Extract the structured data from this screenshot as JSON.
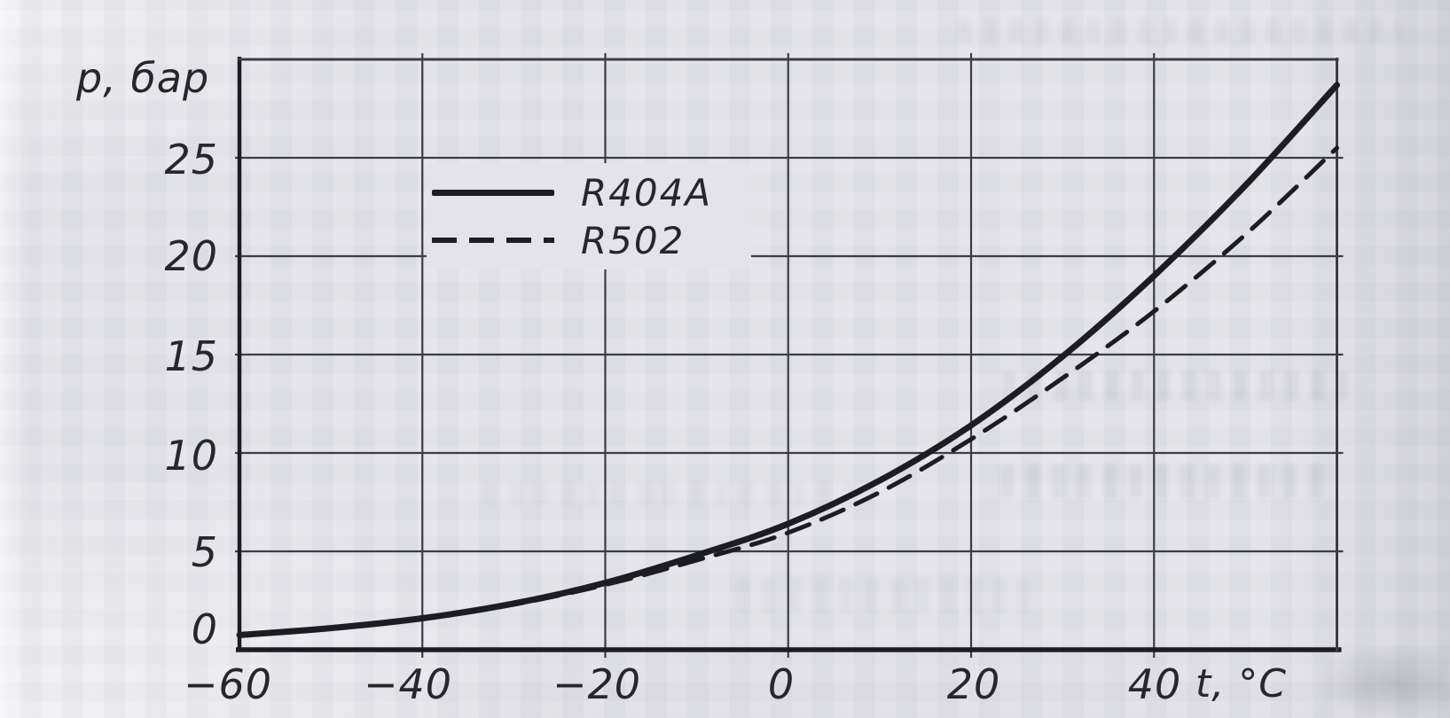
{
  "labels": {
    "y_axis": "p, бар",
    "x_axis": "t, °C"
  },
  "chart_data": {
    "type": "line",
    "title": "",
    "xlabel": "t, °C",
    "ylabel": "p, бар",
    "xlim": [
      -60,
      60
    ],
    "ylim": [
      0,
      30
    ],
    "grid": true,
    "legend_position": "inside upper-left",
    "x": [
      -60,
      -50,
      -40,
      -30,
      -20,
      -10,
      0,
      10,
      20,
      30,
      40,
      50,
      60
    ],
    "series": [
      {
        "name": "R404A",
        "line_style": "solid",
        "values": [
          0.75,
          1.1,
          1.6,
          2.35,
          3.4,
          4.8,
          6.4,
          8.6,
          11.4,
          14.9,
          19.0,
          23.6,
          28.7
        ]
      },
      {
        "name": "R502",
        "line_style": "dashed",
        "values": [
          0.75,
          1.1,
          1.58,
          2.3,
          3.3,
          4.55,
          5.95,
          8.0,
          10.7,
          13.8,
          17.2,
          21.1,
          25.5
        ]
      }
    ],
    "x_tick_values": [
      -60,
      -40,
      -20,
      0,
      20,
      40
    ],
    "x_tick_labels": [
      "−60",
      "−40",
      "−20",
      "0",
      "20",
      "40"
    ],
    "y_tick_values": [
      25,
      20,
      15,
      10,
      5,
      0
    ],
    "y_tick_labels": [
      "25",
      "20",
      "15",
      "10",
      "5",
      "0"
    ]
  },
  "colors": {
    "paper": "#e3e3e9",
    "ink": "#26262c",
    "grid": "#3c3c44",
    "curve": "#1c1c22"
  }
}
